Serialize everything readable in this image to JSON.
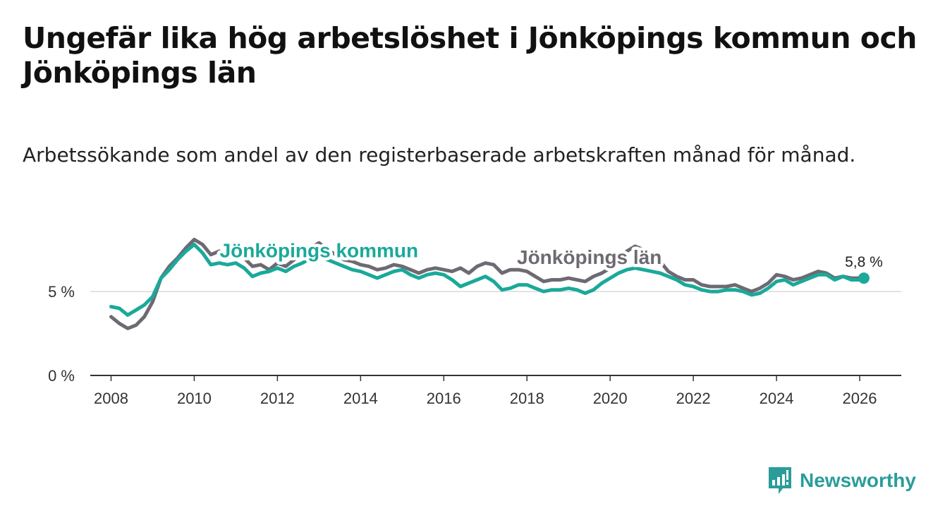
{
  "title": "Ungefär lika hög arbetslöshet i Jönköpings kommun och Jönköpings län",
  "subtitle": "Arbetssökande som andel av den registerbaserade arbetskraften månad för månad.",
  "brand": "Newsworthy",
  "colors": {
    "kommun": "#1aa99a",
    "lan": "#6e6a72",
    "grid": "#d9d9d9",
    "axis": "#333333",
    "brand": "#2a9d9a"
  },
  "chart_data": {
    "type": "line",
    "title": "Ungefär lika hög arbetslöshet i Jönköpings kommun och Jönköpings län",
    "xlabel": "",
    "ylabel": "",
    "xlim": [
      2007.5,
      2027.0
    ],
    "ylim": [
      0,
      9
    ],
    "x_ticks": [
      2008,
      2010,
      2012,
      2014,
      2016,
      2018,
      2020,
      2022,
      2024,
      2026
    ],
    "x_tick_labels": [
      "2008",
      "2010",
      "2012",
      "2014",
      "2016",
      "2018",
      "2020",
      "2022",
      "2024",
      "2026"
    ],
    "y_ticks": [
      0,
      5
    ],
    "y_tick_labels": [
      "0 %",
      "5 %"
    ],
    "grid": "horizontal",
    "end_label": "5,8 %",
    "end_value": 5.8,
    "end_x": 2026.1,
    "series": [
      {
        "name": "Jönköpings län",
        "label": "Jönköpings län",
        "color": "#6e6a72",
        "points": [
          [
            2008.0,
            3.5
          ],
          [
            2008.2,
            3.1
          ],
          [
            2008.4,
            2.8
          ],
          [
            2008.6,
            3.0
          ],
          [
            2008.8,
            3.5
          ],
          [
            2009.0,
            4.4
          ],
          [
            2009.2,
            5.8
          ],
          [
            2009.4,
            6.5
          ],
          [
            2009.6,
            7.0
          ],
          [
            2009.8,
            7.6
          ],
          [
            2010.0,
            8.1
          ],
          [
            2010.2,
            7.8
          ],
          [
            2010.4,
            7.2
          ],
          [
            2010.6,
            7.4
          ],
          [
            2010.8,
            7.0
          ],
          [
            2011.0,
            7.2
          ],
          [
            2011.2,
            7.0
          ],
          [
            2011.4,
            6.5
          ],
          [
            2011.6,
            6.6
          ],
          [
            2011.8,
            6.3
          ],
          [
            2012.0,
            6.7
          ],
          [
            2012.2,
            6.5
          ],
          [
            2012.4,
            6.9
          ],
          [
            2012.6,
            7.2
          ],
          [
            2012.8,
            7.6
          ],
          [
            2013.0,
            7.9
          ],
          [
            2013.2,
            7.5
          ],
          [
            2013.4,
            7.2
          ],
          [
            2013.6,
            6.9
          ],
          [
            2013.8,
            6.8
          ],
          [
            2014.0,
            6.6
          ],
          [
            2014.2,
            6.5
          ],
          [
            2014.4,
            6.3
          ],
          [
            2014.6,
            6.4
          ],
          [
            2014.8,
            6.6
          ],
          [
            2015.0,
            6.5
          ],
          [
            2015.2,
            6.3
          ],
          [
            2015.4,
            6.1
          ],
          [
            2015.6,
            6.3
          ],
          [
            2015.8,
            6.4
          ],
          [
            2016.0,
            6.3
          ],
          [
            2016.2,
            6.2
          ],
          [
            2016.4,
            6.4
          ],
          [
            2016.6,
            6.1
          ],
          [
            2016.8,
            6.5
          ],
          [
            2017.0,
            6.7
          ],
          [
            2017.2,
            6.6
          ],
          [
            2017.4,
            6.1
          ],
          [
            2017.6,
            6.3
          ],
          [
            2017.8,
            6.3
          ],
          [
            2018.0,
            6.2
          ],
          [
            2018.2,
            5.9
          ],
          [
            2018.4,
            5.6
          ],
          [
            2018.6,
            5.7
          ],
          [
            2018.8,
            5.7
          ],
          [
            2019.0,
            5.8
          ],
          [
            2019.2,
            5.7
          ],
          [
            2019.4,
            5.6
          ],
          [
            2019.6,
            5.9
          ],
          [
            2019.8,
            6.1
          ],
          [
            2020.0,
            6.4
          ],
          [
            2020.2,
            7.0
          ],
          [
            2020.4,
            7.4
          ],
          [
            2020.6,
            7.7
          ],
          [
            2020.8,
            7.5
          ],
          [
            2021.0,
            7.2
          ],
          [
            2021.2,
            6.8
          ],
          [
            2021.4,
            6.2
          ],
          [
            2021.6,
            5.9
          ],
          [
            2021.8,
            5.7
          ],
          [
            2022.0,
            5.7
          ],
          [
            2022.2,
            5.4
          ],
          [
            2022.4,
            5.3
          ],
          [
            2022.6,
            5.3
          ],
          [
            2022.8,
            5.3
          ],
          [
            2023.0,
            5.4
          ],
          [
            2023.2,
            5.2
          ],
          [
            2023.4,
            5.0
          ],
          [
            2023.6,
            5.2
          ],
          [
            2023.8,
            5.5
          ],
          [
            2024.0,
            6.0
          ],
          [
            2024.2,
            5.9
          ],
          [
            2024.4,
            5.7
          ],
          [
            2024.6,
            5.8
          ],
          [
            2024.8,
            6.0
          ],
          [
            2025.0,
            6.2
          ],
          [
            2025.2,
            6.1
          ],
          [
            2025.4,
            5.8
          ],
          [
            2025.6,
            5.9
          ],
          [
            2025.8,
            5.8
          ],
          [
            2026.0,
            5.8
          ]
        ]
      },
      {
        "name": "Jönköpings kommun",
        "label": "Jönköpings kommun",
        "color": "#1aa99a",
        "points": [
          [
            2008.0,
            4.1
          ],
          [
            2008.2,
            4.0
          ],
          [
            2008.4,
            3.6
          ],
          [
            2008.6,
            3.9
          ],
          [
            2008.8,
            4.2
          ],
          [
            2009.0,
            4.7
          ],
          [
            2009.2,
            5.8
          ],
          [
            2009.4,
            6.3
          ],
          [
            2009.6,
            6.9
          ],
          [
            2009.8,
            7.4
          ],
          [
            2010.0,
            7.8
          ],
          [
            2010.2,
            7.3
          ],
          [
            2010.4,
            6.6
          ],
          [
            2010.6,
            6.7
          ],
          [
            2010.8,
            6.6
          ],
          [
            2011.0,
            6.7
          ],
          [
            2011.2,
            6.4
          ],
          [
            2011.4,
            5.9
          ],
          [
            2011.6,
            6.1
          ],
          [
            2011.8,
            6.2
          ],
          [
            2012.0,
            6.4
          ],
          [
            2012.2,
            6.2
          ],
          [
            2012.4,
            6.5
          ],
          [
            2012.6,
            6.7
          ],
          [
            2012.8,
            7.0
          ],
          [
            2013.0,
            7.1
          ],
          [
            2013.2,
            6.9
          ],
          [
            2013.4,
            6.7
          ],
          [
            2013.6,
            6.5
          ],
          [
            2013.8,
            6.3
          ],
          [
            2014.0,
            6.2
          ],
          [
            2014.2,
            6.0
          ],
          [
            2014.4,
            5.8
          ],
          [
            2014.6,
            6.0
          ],
          [
            2014.8,
            6.2
          ],
          [
            2015.0,
            6.3
          ],
          [
            2015.2,
            6.0
          ],
          [
            2015.4,
            5.8
          ],
          [
            2015.6,
            6.0
          ],
          [
            2015.8,
            6.1
          ],
          [
            2016.0,
            6.0
          ],
          [
            2016.2,
            5.7
          ],
          [
            2016.4,
            5.3
          ],
          [
            2016.6,
            5.5
          ],
          [
            2016.8,
            5.7
          ],
          [
            2017.0,
            5.9
          ],
          [
            2017.2,
            5.6
          ],
          [
            2017.4,
            5.1
          ],
          [
            2017.6,
            5.2
          ],
          [
            2017.8,
            5.4
          ],
          [
            2018.0,
            5.4
          ],
          [
            2018.2,
            5.2
          ],
          [
            2018.4,
            5.0
          ],
          [
            2018.6,
            5.1
          ],
          [
            2018.8,
            5.1
          ],
          [
            2019.0,
            5.2
          ],
          [
            2019.2,
            5.1
          ],
          [
            2019.4,
            4.9
          ],
          [
            2019.6,
            5.1
          ],
          [
            2019.8,
            5.5
          ],
          [
            2020.0,
            5.8
          ],
          [
            2020.2,
            6.1
          ],
          [
            2020.4,
            6.3
          ],
          [
            2020.6,
            6.4
          ],
          [
            2020.8,
            6.3
          ],
          [
            2021.0,
            6.2
          ],
          [
            2021.2,
            6.1
          ],
          [
            2021.4,
            5.9
          ],
          [
            2021.6,
            5.7
          ],
          [
            2021.8,
            5.4
          ],
          [
            2022.0,
            5.3
          ],
          [
            2022.2,
            5.1
          ],
          [
            2022.4,
            5.0
          ],
          [
            2022.6,
            5.0
          ],
          [
            2022.8,
            5.1
          ],
          [
            2023.0,
            5.1
          ],
          [
            2023.2,
            5.0
          ],
          [
            2023.4,
            4.8
          ],
          [
            2023.6,
            4.9
          ],
          [
            2023.8,
            5.2
          ],
          [
            2024.0,
            5.6
          ],
          [
            2024.2,
            5.7
          ],
          [
            2024.4,
            5.4
          ],
          [
            2024.6,
            5.6
          ],
          [
            2024.8,
            5.8
          ],
          [
            2025.0,
            6.0
          ],
          [
            2025.2,
            6.0
          ],
          [
            2025.4,
            5.7
          ],
          [
            2025.6,
            5.9
          ],
          [
            2025.8,
            5.7
          ],
          [
            2026.0,
            5.7
          ],
          [
            2026.1,
            5.8
          ]
        ]
      }
    ],
    "annotations": [
      {
        "text": "Jönköpings kommun",
        "series": "Jönköpings kommun",
        "x": 2013.0,
        "y": 7.05
      },
      {
        "text": "Jönköpings län",
        "series": "Jönköpings län",
        "x": 2019.5,
        "y": 6.65
      }
    ]
  }
}
